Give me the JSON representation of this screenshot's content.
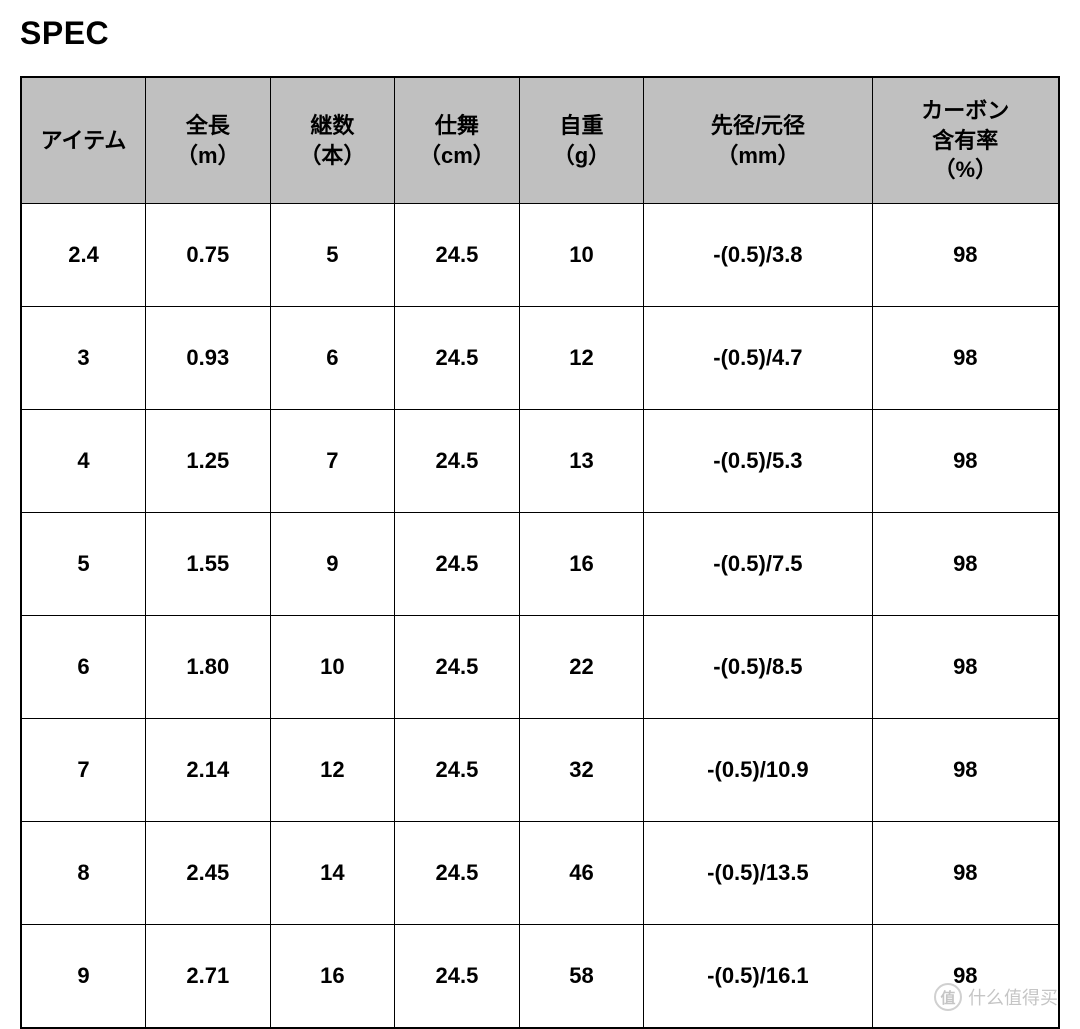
{
  "title": "SPEC",
  "table": {
    "type": "table",
    "header_bg": "#c0c0c0",
    "border_color": "#000000",
    "font_weight": 700,
    "header_fontsize": 22,
    "cell_fontsize": 22,
    "columns": [
      {
        "label_line1": "アイテム",
        "label_line2": ""
      },
      {
        "label_line1": "全長",
        "label_line2": "（m）"
      },
      {
        "label_line1": "継数",
        "label_line2": "（本）"
      },
      {
        "label_line1": "仕舞",
        "label_line2": "（cm）"
      },
      {
        "label_line1": "自重",
        "label_line2": "（g）"
      },
      {
        "label_line1": "先径/元径",
        "label_line2": "（mm）"
      },
      {
        "label_line1": "カーボン",
        "label_line2": "含有率",
        "label_line3": "（%）"
      }
    ],
    "rows": [
      [
        "2.4",
        "0.75",
        "5",
        "24.5",
        "10",
        "-(0.5)/3.8",
        "98"
      ],
      [
        "3",
        "0.93",
        "6",
        "24.5",
        "12",
        "-(0.5)/4.7",
        "98"
      ],
      [
        "4",
        "1.25",
        "7",
        "24.5",
        "13",
        "-(0.5)/5.3",
        "98"
      ],
      [
        "5",
        "1.55",
        "9",
        "24.5",
        "16",
        "-(0.5)/7.5",
        "98"
      ],
      [
        "6",
        "1.80",
        "10",
        "24.5",
        "22",
        "-(0.5)/8.5",
        "98"
      ],
      [
        "7",
        "2.14",
        "12",
        "24.5",
        "32",
        "-(0.5)/10.9",
        "98"
      ],
      [
        "8",
        "2.45",
        "14",
        "24.5",
        "46",
        "-(0.5)/13.5",
        "98"
      ],
      [
        "9",
        "2.71",
        "16",
        "24.5",
        "58",
        "-(0.5)/16.1",
        "98"
      ]
    ]
  },
  "watermark": {
    "icon_text": "值",
    "text": "什么值得买"
  }
}
